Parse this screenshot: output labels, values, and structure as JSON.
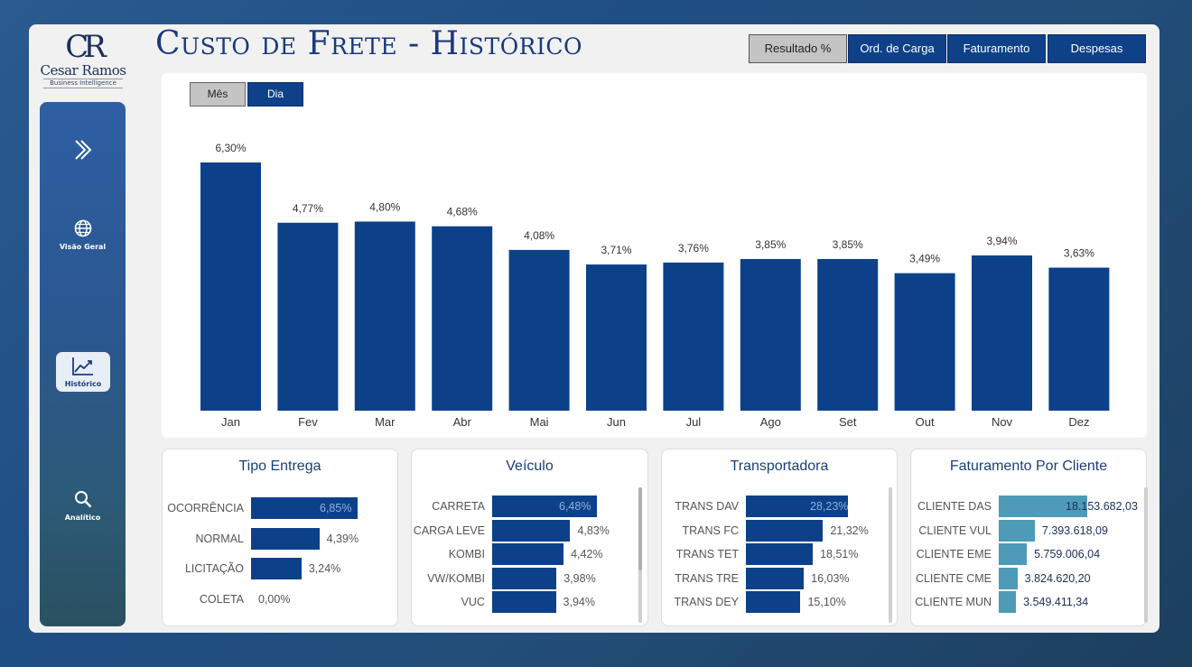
{
  "brand": {
    "monogram": "CR",
    "name": "Cesar Ramos",
    "tagline": "Business Intelligence"
  },
  "header": {
    "title": "Custo de Frete - Histórico"
  },
  "top_buttons": [
    {
      "label": "Resultado %",
      "selected": true
    },
    {
      "label": "Ord. de Carga",
      "selected": false
    },
    {
      "label": "Faturamento",
      "selected": false
    },
    {
      "label": "Despesas",
      "selected": false
    }
  ],
  "sidebar": {
    "expand_icon": "double-chevron-right-icon",
    "items": [
      {
        "label": "Visão Geral",
        "icon": "globe-icon"
      },
      {
        "label": "Histórico",
        "icon": "line-chart-icon",
        "active": true
      },
      {
        "label": "Analítico",
        "icon": "search-icon"
      }
    ]
  },
  "toggle": {
    "mes": "Mês",
    "dia": "Dia",
    "selected": "Dia"
  },
  "chart_data": [
    {
      "type": "bar",
      "categories": [
        "Jan",
        "Fev",
        "Mar",
        "Abr",
        "Mai",
        "Jun",
        "Jul",
        "Ago",
        "Set",
        "Out",
        "Nov",
        "Dez"
      ],
      "values": [
        6.3,
        4.77,
        4.8,
        4.68,
        4.08,
        3.71,
        3.76,
        3.85,
        3.85,
        3.49,
        3.94,
        3.63
      ],
      "labels": [
        "6,30%",
        "4,77%",
        "4,80%",
        "4,68%",
        "4,08%",
        "3,71%",
        "3,76%",
        "3,85%",
        "3,85%",
        "3,49%",
        "3,94%",
        "3,63%"
      ],
      "color": "#0c418a"
    },
    {
      "type": "bar",
      "title": "Tipo Entrega",
      "orientation": "horizontal",
      "categories": [
        "OCORRÊNCIA",
        "NORMAL",
        "LICITAÇÃO",
        "COLETA"
      ],
      "values": [
        6.85,
        4.39,
        3.24,
        0.0
      ],
      "labels": [
        "6,85%",
        "4,39%",
        "3,24%",
        "0,00%"
      ]
    },
    {
      "type": "bar",
      "title": "Veículo",
      "orientation": "horizontal",
      "categories": [
        "CARRETA",
        "CARGA LEVE",
        "KOMBI",
        "VW/KOMBI",
        "VUC"
      ],
      "values": [
        6.48,
        4.83,
        4.42,
        3.98,
        3.94
      ],
      "labels": [
        "6,48%",
        "4,83%",
        "4,42%",
        "3,98%",
        "3,94%"
      ]
    },
    {
      "type": "bar",
      "title": "Transportadora",
      "orientation": "horizontal",
      "categories": [
        "TRANS DAV",
        "TRANS FC",
        "TRANS TET",
        "TRANS TRE",
        "TRANS DEY"
      ],
      "values": [
        28.23,
        21.32,
        18.51,
        16.03,
        15.1
      ],
      "labels": [
        "28,23%",
        "21,32%",
        "18,51%",
        "16,03%",
        "15,10%"
      ]
    },
    {
      "type": "bar",
      "title": "Faturamento Por Cliente",
      "orientation": "horizontal",
      "categories": [
        "CLIENTE DAS",
        "CLIENTE VUL",
        "CLIENTE EME",
        "CLIENTE CME",
        "CLIENTE MUN"
      ],
      "values": [
        18153682.03,
        7393618.09,
        5759006.04,
        3824620.2,
        3549411.34
      ],
      "labels": [
        "18.153.682,03",
        "7.393.618,09",
        "5.759.006,04",
        "3.824.620,20",
        "3.549.411,34"
      ],
      "color": "#4e9ab9"
    }
  ]
}
